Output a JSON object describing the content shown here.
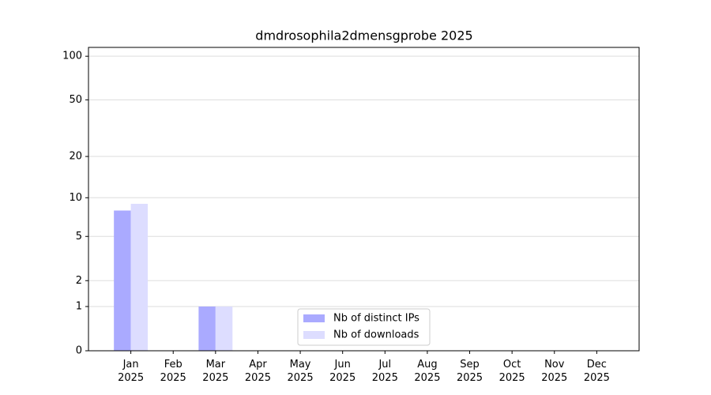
{
  "chart_data": {
    "type": "bar",
    "title": "dmdrosophila2dmensgprobe 2025",
    "categories": [
      "Jan\n2025",
      "Feb\n2025",
      "Mar\n2025",
      "Apr\n2025",
      "May\n2025",
      "Jun\n2025",
      "Jul\n2025",
      "Aug\n2025",
      "Sep\n2025",
      "Oct\n2025",
      "Nov\n2025",
      "Dec\n2025"
    ],
    "series": [
      {
        "name": "Nb of distinct IPs",
        "color": "#aaaaff",
        "values": [
          8,
          0,
          1,
          0,
          0,
          0,
          0,
          0,
          0,
          0,
          0,
          0
        ]
      },
      {
        "name": "Nb of downloads",
        "color": "#ddddff",
        "values": [
          9,
          0,
          1,
          0,
          0,
          0,
          0,
          0,
          0,
          0,
          0,
          0
        ]
      }
    ],
    "y_scale": "log1p",
    "ylim": [
      0,
      115
    ],
    "yticks": [
      0,
      1,
      2,
      5,
      10,
      20,
      50,
      100
    ],
    "grid": true,
    "legend": "lower center"
  }
}
